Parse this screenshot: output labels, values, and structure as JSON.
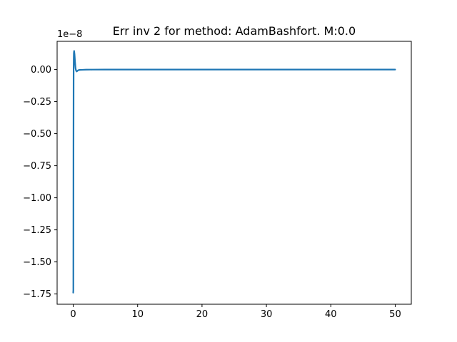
{
  "chart_data": {
    "type": "line",
    "title": "Err inv 2 for method: AdamBashfort. M:0.0",
    "offset_text": "1e−8",
    "xlabel": "",
    "ylabel": "",
    "xlim": [
      -2.5,
      52.5
    ],
    "ylim": [
      -1.83,
      0.22
    ],
    "x_ticks": [
      0,
      10,
      20,
      30,
      40,
      50
    ],
    "x_tick_labels": [
      "0",
      "10",
      "20",
      "30",
      "40",
      "50"
    ],
    "y_ticks": [
      0.0,
      -0.25,
      -0.5,
      -0.75,
      -1.0,
      -1.25,
      -1.5,
      -1.75
    ],
    "y_tick_labels": [
      "0.00",
      "−0.25",
      "−0.50",
      "−0.75",
      "−1.00",
      "−1.25",
      "−1.50",
      "−1.75"
    ],
    "grid": false,
    "legend": "none",
    "series_color": "#1f77b4",
    "series": [
      {
        "x": [
          0.0,
          0.02,
          0.04,
          0.06,
          0.08,
          0.1,
          0.14,
          0.2,
          0.28,
          0.36,
          0.45,
          0.55,
          0.65,
          0.8,
          1.0,
          1.5,
          2.0,
          3.0,
          5.0,
          8.0,
          12.0,
          20.0,
          30.0,
          40.0,
          50.0
        ],
        "y": [
          -1.74,
          -1.72,
          -0.6,
          0.0,
          0.09,
          0.13,
          0.145,
          0.12,
          0.06,
          0.01,
          -0.01,
          -0.015,
          -0.01,
          -0.005,
          -0.003,
          -0.002,
          -0.001,
          -0.0005,
          0.0,
          0.0,
          0.0,
          0.0,
          0.0,
          0.0,
          0.0
        ]
      }
    ]
  }
}
